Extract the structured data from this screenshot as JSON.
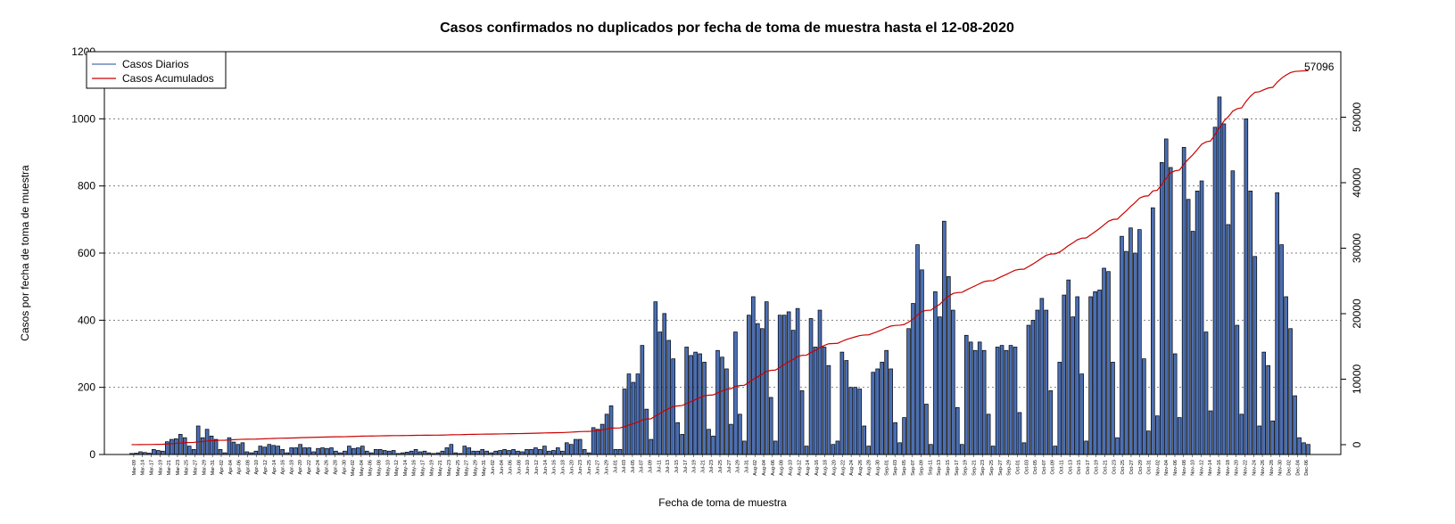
{
  "chart_data": {
    "type": "bar",
    "title": "Casos confirmados no duplicados por fecha de toma de muestra hasta el 12-08-2020",
    "xlabel": "Fecha de toma de muestra",
    "ylabel": "Casos por fecha de toma de muestra",
    "ylim": [
      0,
      1200
    ],
    "y_ticks": [
      0,
      200,
      400,
      600,
      800,
      1000,
      1200
    ],
    "y2lim": [
      -1500,
      60000
    ],
    "y2_ticks": [
      0,
      10000,
      20000,
      30000,
      40000,
      50000
    ],
    "grid": "horizontal dotted",
    "legend_position": "top-left",
    "colors": {
      "bars": "#4a6fb5",
      "bar_border": "#000000",
      "daily": "#4a6fb5",
      "cumulative": "#cc0000",
      "grid": "#808080"
    },
    "series": [
      {
        "name": "Casos Diarios"
      },
      {
        "name": "Casos Acumulados"
      }
    ],
    "start_date": "2020-03-09",
    "daily": [
      3,
      4,
      8,
      6,
      4,
      15,
      12,
      10,
      38,
      45,
      47,
      60,
      50,
      25,
      15,
      85,
      50,
      75,
      55,
      45,
      15,
      5,
      50,
      37,
      30,
      35,
      8,
      5,
      10,
      25,
      22,
      30,
      27,
      25,
      15,
      5,
      20,
      20,
      30,
      20,
      20,
      8,
      18,
      20,
      18,
      20,
      10,
      5,
      10,
      25,
      18,
      20,
      25,
      10,
      5,
      15,
      15,
      12,
      10,
      12,
      3,
      5,
      7,
      10,
      15,
      8,
      10,
      5,
      3,
      5,
      10,
      20,
      30,
      5,
      3,
      25,
      20,
      10,
      10,
      15,
      10,
      5,
      10,
      12,
      15,
      12,
      15,
      10,
      8,
      15,
      15,
      20,
      15,
      25,
      10,
      12,
      20,
      10,
      35,
      30,
      45,
      45,
      15,
      5,
      80,
      75,
      90,
      120,
      145,
      15,
      15,
      195,
      240,
      215,
      240,
      325,
      135,
      45,
      455,
      365,
      420,
      340,
      285,
      95,
      60,
      320,
      295,
      305,
      300,
      275,
      75,
      55,
      310,
      290,
      255,
      90,
      365,
      120,
      40,
      415,
      470,
      390,
      375,
      455,
      170,
      40,
      415,
      415,
      425,
      370,
      435,
      190,
      25,
      405,
      320,
      430,
      320,
      265,
      30,
      40,
      305,
      280,
      200,
      200,
      195,
      85,
      25,
      245,
      255,
      275,
      310,
      255,
      95,
      35,
      110,
      375,
      450,
      625,
      550,
      150,
      30,
      485,
      410,
      695,
      530,
      430,
      140,
      30,
      355,
      335,
      310,
      335,
      310,
      120,
      25,
      320,
      325,
      310,
      325,
      320,
      125,
      35,
      385,
      400,
      430,
      465,
      430,
      190,
      25,
      275,
      475,
      520,
      410,
      470,
      240,
      40,
      470,
      485,
      490,
      555,
      545,
      275,
      50,
      650,
      605,
      675,
      600,
      670,
      285,
      70,
      735,
      115,
      870,
      940,
      855,
      300,
      110,
      915,
      760,
      665,
      785,
      815,
      365,
      130,
      975,
      1065,
      985,
      685,
      845,
      385,
      120,
      1000,
      785,
      590,
      85,
      305,
      265,
      100,
      780,
      625,
      470,
      375,
      175,
      50,
      35,
      30
    ],
    "final_cumulative": 57096,
    "final_cumulative_label": "57096",
    "x_tick_labels": [
      "Mar-09",
      "Mar-14",
      "Mar-17",
      "Mar-19",
      "Mar-21",
      "Mar-23",
      "Mar-25",
      "Mar-27",
      "Mar-29",
      "Mar-31",
      "Apr-02",
      "Apr-04",
      "Apr-06",
      "Apr-08",
      "Apr-10",
      "Apr-12",
      "Apr-14",
      "Apr-16",
      "Apr-18",
      "Apr-20",
      "Apr-22",
      "Apr-24",
      "Apr-26",
      "Apr-28",
      "Apr-30",
      "May-02",
      "May-04",
      "May-06",
      "May-08",
      "May-10",
      "May-12",
      "May-14",
      "May-16",
      "May-17",
      "May-19",
      "May-21",
      "May-23",
      "May-25",
      "May-27",
      "May-29",
      "May-31",
      "Jun-02",
      "Jun-04",
      "Jun-06",
      "Jun-08",
      "Jun-10",
      "Jun-12",
      "Jun-14",
      "Jun-16",
      "Jun-18",
      "Jun-20",
      "Jun-23",
      "Jun-25",
      "Jun-27",
      "Jun-29",
      "Jul-01",
      "Jul-03",
      "Jul-05",
      "Jul-07",
      "Jul-09",
      "Jul-11",
      "Jul-13",
      "Jul-15",
      "Jul-17",
      "Jul-19",
      "Jul-21",
      "Jul-23",
      "Jul-25",
      "Jul-27",
      "Jul-29",
      "Jul-31",
      "Aug-02",
      "Aug-04",
      "Aug-06",
      "Aug-08",
      "Aug-10",
      "Aug-12",
      "Aug-14",
      "Aug-16",
      "Aug-18",
      "Aug-20",
      "Aug-22",
      "Aug-24",
      "Aug-26",
      "Aug-28",
      "Aug-30",
      "Sep-01",
      "Sep-03",
      "Sep-05",
      "Sep-07",
      "Sep-09",
      "Sep-11",
      "Sep-13",
      "Sep-15",
      "Sep-17",
      "Sep-19",
      "Sep-21",
      "Sep-23",
      "Sep-25",
      "Sep-27",
      "Sep-29",
      "Oct-01",
      "Oct-03",
      "Oct-05",
      "Oct-07",
      "Oct-09",
      "Oct-11",
      "Oct-13",
      "Oct-15",
      "Oct-17",
      "Oct-19",
      "Oct-21",
      "Oct-23",
      "Oct-25",
      "Oct-27",
      "Oct-29",
      "Oct-31",
      "Nov-02",
      "Nov-04",
      "Nov-06",
      "Nov-08",
      "Nov-10",
      "Nov-12",
      "Nov-14",
      "Nov-16",
      "Nov-18",
      "Nov-20",
      "Nov-22",
      "Nov-24",
      "Nov-26",
      "Nov-28",
      "Nov-30",
      "Dec-02",
      "Dec-04",
      "Dec-06"
    ]
  }
}
